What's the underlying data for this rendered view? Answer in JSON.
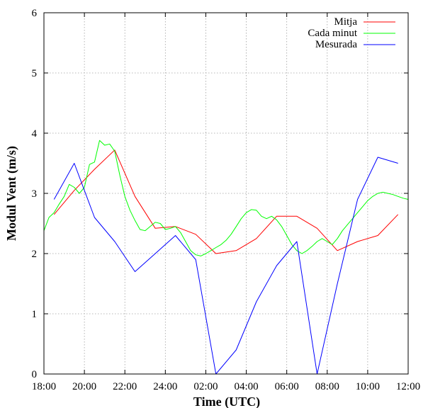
{
  "chart_data": {
    "type": "line",
    "title": "",
    "xlabel": "Time (UTC)",
    "ylabel": "Modul Vent (m/s)",
    "x_ticks": [
      "18:00",
      "20:00",
      "22:00",
      "24:00",
      "02:00",
      "04:00",
      "06:00",
      "08:00",
      "10:00",
      "12:00"
    ],
    "xlim": [
      0,
      18
    ],
    "x_unit": "hours after 18:00 UTC",
    "y_ticks": [
      "0",
      "1",
      "2",
      "3",
      "4",
      "5",
      "6"
    ],
    "ylim": [
      0,
      6
    ],
    "grid": true,
    "legend_position": "top-right",
    "series": [
      {
        "name": "Mitja",
        "color": "#ff0000",
        "x": [
          0.5,
          1.5,
          2.5,
          3.5,
          4.5,
          5.5,
          6.5,
          7.5,
          8.5,
          9.5,
          10.5,
          11.5,
          12.5,
          13.5,
          14.5,
          15.5,
          16.5,
          17.5
        ],
        "y": [
          2.65,
          3.05,
          3.4,
          3.72,
          2.95,
          2.42,
          2.45,
          2.32,
          2.0,
          2.05,
          2.25,
          2.62,
          2.62,
          2.42,
          2.05,
          2.2,
          2.3,
          2.65
        ]
      },
      {
        "name": "Cada minut",
        "color": "#00ff00",
        "x": [
          0.0,
          0.25,
          0.5,
          0.75,
          1.0,
          1.25,
          1.5,
          1.75,
          2.0,
          2.25,
          2.5,
          2.75,
          3.0,
          3.25,
          3.5,
          3.75,
          4.0,
          4.25,
          4.5,
          4.75,
          5.0,
          5.25,
          5.5,
          5.75,
          6.0,
          6.25,
          6.5,
          6.75,
          7.0,
          7.25,
          7.5,
          7.75,
          8.0,
          8.25,
          8.5,
          8.75,
          9.0,
          9.25,
          9.5,
          9.75,
          10.0,
          10.25,
          10.5,
          10.75,
          11.0,
          11.25,
          11.5,
          11.75,
          12.0,
          12.25,
          12.5,
          12.75,
          13.0,
          13.25,
          13.5,
          13.75,
          14.0,
          14.25,
          14.5,
          14.75,
          15.0,
          15.25,
          15.5,
          15.75,
          16.0,
          16.25,
          16.5,
          16.75,
          17.0,
          17.25,
          17.5,
          17.75,
          18.0
        ],
        "y": [
          2.38,
          2.6,
          2.68,
          2.82,
          2.95,
          3.15,
          3.1,
          3.0,
          3.1,
          3.48,
          3.52,
          3.88,
          3.8,
          3.82,
          3.7,
          3.3,
          2.95,
          2.72,
          2.55,
          2.4,
          2.38,
          2.45,
          2.52,
          2.5,
          2.4,
          2.42,
          2.45,
          2.35,
          2.2,
          2.05,
          1.98,
          1.96,
          2.0,
          2.05,
          2.1,
          2.15,
          2.22,
          2.32,
          2.45,
          2.58,
          2.68,
          2.73,
          2.72,
          2.62,
          2.58,
          2.62,
          2.56,
          2.45,
          2.3,
          2.15,
          2.05,
          2.0,
          2.05,
          2.12,
          2.2,
          2.25,
          2.2,
          2.15,
          2.25,
          2.38,
          2.48,
          2.58,
          2.68,
          2.78,
          2.88,
          2.95,
          3.0,
          3.02,
          3.0,
          2.98,
          2.95,
          2.92,
          2.9
        ]
      },
      {
        "name": "Mesurada",
        "color": "#0000ff",
        "x": [
          0.5,
          1.5,
          2.5,
          3.5,
          4.5,
          5.5,
          6.5,
          7.5,
          8.5,
          9.5,
          10.5,
          11.5,
          12.5,
          13.5,
          14.5,
          15.5,
          16.5,
          17.5
        ],
        "y": [
          2.9,
          3.5,
          2.6,
          2.2,
          1.7,
          2.0,
          2.3,
          1.9,
          0.0,
          0.4,
          1.2,
          1.8,
          2.2,
          0.0,
          1.5,
          2.9,
          3.6,
          3.5
        ]
      }
    ]
  }
}
